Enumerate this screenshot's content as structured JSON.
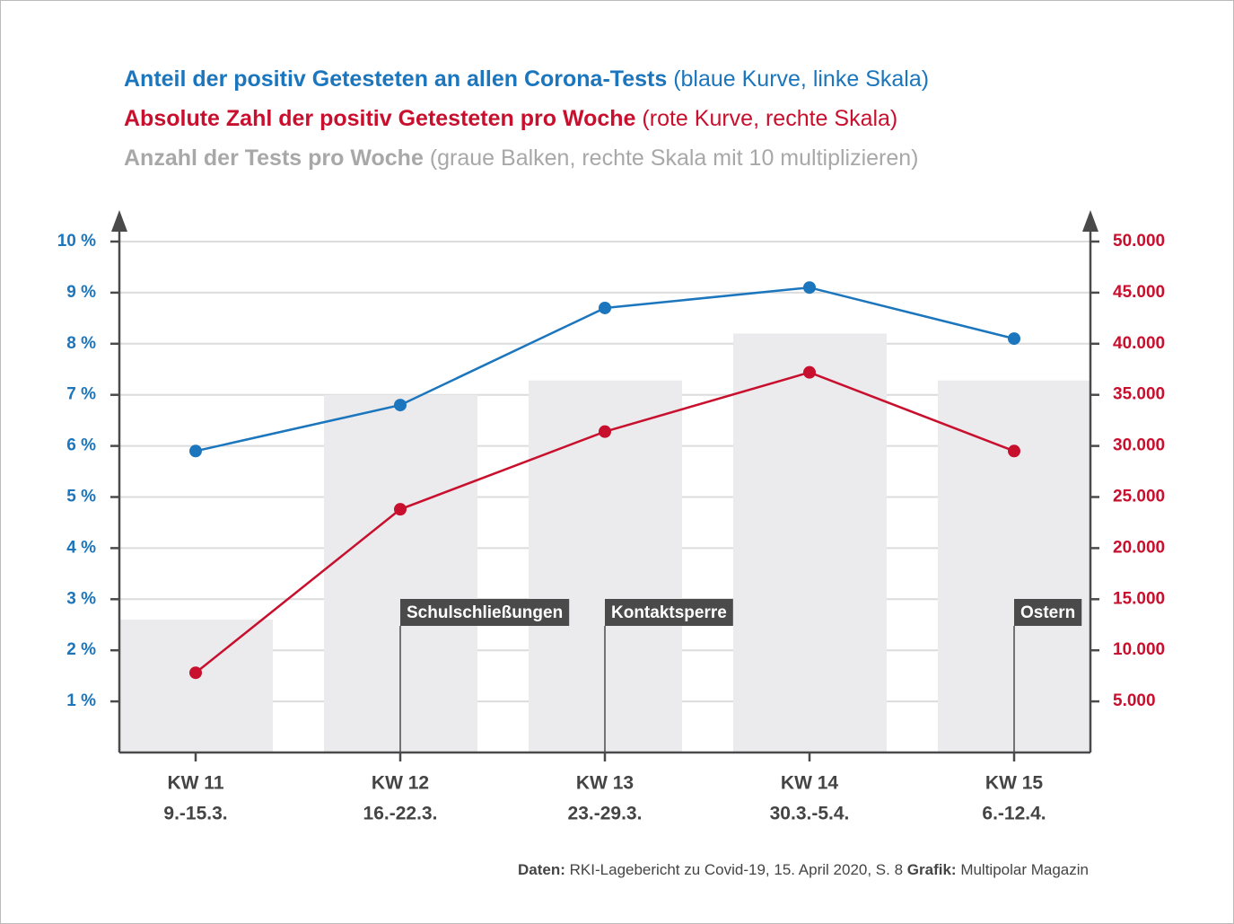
{
  "chart_data": {
    "type": "bar-line",
    "categories": [
      "KW 11",
      "KW 12",
      "KW 13",
      "KW 14",
      "KW 15"
    ],
    "category_dates": [
      "9.-15.3.",
      "16.-22.3.",
      "23.-29.3.",
      "30.3.-5.4.",
      "6.-12.4."
    ],
    "series": [
      {
        "name": "Anteil der positiv Getesteten an allen Corona-Tests",
        "description": "(blaue Kurve, linke Skala)",
        "type": "line",
        "axis": "y",
        "color": "#1b76bd",
        "values": [
          5.9,
          6.8,
          8.7,
          9.1,
          8.1
        ]
      },
      {
        "name": "Absolute Zahl der positiv Getesteten pro Woche",
        "description": "(rote Kurve, rechte Skala)",
        "type": "line",
        "axis": "y2",
        "color": "#c8102e",
        "values": [
          7800,
          23800,
          31400,
          37200,
          29500
        ]
      },
      {
        "name": "Anzahl der Tests pro Woche",
        "description": "(graue Balken, rechte Skala mit 10 multiplizieren)",
        "type": "bar",
        "axis": "y2",
        "color": "#ebebed",
        "legend_color": "#a8a8a8",
        "values": [
          13000,
          35000,
          36400,
          41000,
          36400
        ]
      }
    ],
    "ylim": [
      0,
      10
    ],
    "yticks": [
      {
        "value": 1,
        "label": "1 %"
      },
      {
        "value": 2,
        "label": "2 %"
      },
      {
        "value": 3,
        "label": "3 %"
      },
      {
        "value": 4,
        "label": "4 %"
      },
      {
        "value": 5,
        "label": "5 %"
      },
      {
        "value": 6,
        "label": "6 %"
      },
      {
        "value": 7,
        "label": "7 %"
      },
      {
        "value": 8,
        "label": "8 %"
      },
      {
        "value": 9,
        "label": "9 %"
      },
      {
        "value": 10,
        "label": "10 %"
      }
    ],
    "y2lim": [
      0,
      50000
    ],
    "y2ticks": [
      {
        "value": 5000,
        "label": "5.000"
      },
      {
        "value": 10000,
        "label": "10.000"
      },
      {
        "value": 15000,
        "label": "15.000"
      },
      {
        "value": 20000,
        "label": "20.000"
      },
      {
        "value": 25000,
        "label": "25.000"
      },
      {
        "value": 30000,
        "label": "30.000"
      },
      {
        "value": 35000,
        "label": "35.000"
      },
      {
        "value": 40000,
        "label": "40.000"
      },
      {
        "value": 45000,
        "label": "45.000"
      },
      {
        "value": 50000,
        "label": "50.000"
      }
    ],
    "grid": true,
    "annotations": [
      {
        "label": "Schulschließungen",
        "at": "KW 12"
      },
      {
        "label": "Kontaktsperre",
        "at": "KW 13"
      },
      {
        "label": "Ostern",
        "at": "KW 15"
      }
    ],
    "source": [
      {
        "label": "Daten:",
        "text": "RKI-Lagebericht zu Covid-19, 15. April 2020, S. 8"
      },
      {
        "label": "Grafik:",
        "text": "Multipolar Magazin"
      }
    ]
  }
}
